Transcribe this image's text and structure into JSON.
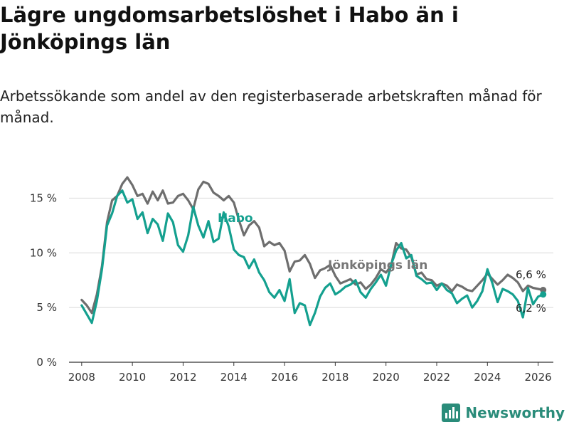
{
  "title": "Lägre ungdomsarbetslöshet i Habo än i Jönköpings län",
  "subtitle": "Arbetssökande som andel av den registerbaserade arbetskraften månad för månad.",
  "brand": "Newsworthy",
  "colors": {
    "habo": "#14a08f",
    "jkp": "#6e6e6e",
    "grid": "#d9d9d9",
    "axis": "#333333",
    "brand": "#2a8c7a"
  },
  "chart_data": {
    "type": "line",
    "title": "Lägre ungdomsarbetslöshet i Habo än i Jönköpings län",
    "xlabel": "",
    "ylabel": "",
    "xlim": [
      2007.5,
      2026.6
    ],
    "ylim": [
      0,
      17.5
    ],
    "yticks": [
      0,
      5,
      10,
      15
    ],
    "ytick_labels": [
      "0 %",
      "5 %",
      "10 %",
      "15 %"
    ],
    "xticks": [
      2008,
      2010,
      2012,
      2014,
      2016,
      2018,
      2020,
      2022,
      2024,
      2026
    ],
    "xtick_labels": [
      "2008",
      "2010",
      "2012",
      "2014",
      "2016",
      "2018",
      "2020",
      "2022",
      "2024",
      "2026"
    ],
    "grid": true,
    "series": [
      {
        "name": "Jönköpings län",
        "label": "Jönköpings län",
        "end_label": "6,6 %",
        "x": [
          2008.0,
          2008.2,
          2008.4,
          2008.6,
          2008.8,
          2009.0,
          2009.2,
          2009.4,
          2009.6,
          2009.8,
          2010.0,
          2010.2,
          2010.4,
          2010.6,
          2010.8,
          2011.0,
          2011.2,
          2011.4,
          2011.6,
          2011.8,
          2012.0,
          2012.2,
          2012.4,
          2012.6,
          2012.8,
          2013.0,
          2013.2,
          2013.4,
          2013.6,
          2013.8,
          2014.0,
          2014.2,
          2014.4,
          2014.6,
          2014.8,
          2015.0,
          2015.2,
          2015.4,
          2015.6,
          2015.8,
          2016.0,
          2016.2,
          2016.4,
          2016.6,
          2016.8,
          2017.0,
          2017.2,
          2017.4,
          2017.6,
          2017.8,
          2018.0,
          2018.2,
          2018.4,
          2018.6,
          2018.8,
          2019.0,
          2019.2,
          2019.4,
          2019.6,
          2019.8,
          2020.0,
          2020.2,
          2020.4,
          2020.6,
          2020.8,
          2021.0,
          2021.2,
          2021.4,
          2021.6,
          2021.8,
          2022.0,
          2022.2,
          2022.4,
          2022.6,
          2022.8,
          2023.0,
          2023.2,
          2023.4,
          2023.6,
          2023.8,
          2024.0,
          2024.2,
          2024.4,
          2024.6,
          2024.8,
          2025.0,
          2025.2,
          2025.4,
          2025.6,
          2025.8,
          2026.0,
          2026.2
        ],
        "values": [
          5.7,
          5.2,
          4.5,
          6.2,
          8.8,
          12.8,
          14.8,
          15.2,
          16.3,
          16.9,
          16.2,
          15.2,
          15.4,
          14.5,
          15.6,
          14.8,
          15.7,
          14.5,
          14.6,
          15.2,
          15.4,
          14.8,
          14.0,
          15.8,
          16.5,
          16.3,
          15.5,
          15.2,
          14.8,
          15.2,
          14.6,
          13.0,
          11.6,
          12.5,
          12.9,
          12.3,
          10.6,
          11.0,
          10.7,
          10.9,
          10.2,
          8.3,
          9.2,
          9.3,
          9.8,
          9.0,
          7.7,
          8.4,
          8.6,
          8.9,
          7.9,
          7.2,
          7.4,
          7.6,
          7.1,
          7.3,
          6.7,
          7.1,
          7.7,
          8.5,
          8.2,
          8.8,
          10.9,
          10.4,
          10.3,
          9.6,
          8.0,
          8.2,
          7.6,
          7.5,
          7.0,
          7.2,
          7.0,
          6.5,
          7.1,
          6.9,
          6.6,
          6.5,
          7.0,
          7.5,
          8.1,
          7.6,
          7.1,
          7.5,
          8.0,
          7.7,
          7.3,
          6.5,
          7.0,
          6.8,
          6.7,
          6.6
        ]
      },
      {
        "name": "Habo",
        "label": "Habo",
        "end_label": "6,2 %",
        "x": [
          2008.0,
          2008.2,
          2008.4,
          2008.6,
          2008.8,
          2009.0,
          2009.2,
          2009.4,
          2009.6,
          2009.8,
          2010.0,
          2010.2,
          2010.4,
          2010.6,
          2010.8,
          2011.0,
          2011.2,
          2011.4,
          2011.6,
          2011.8,
          2012.0,
          2012.2,
          2012.4,
          2012.6,
          2012.8,
          2013.0,
          2013.2,
          2013.4,
          2013.6,
          2013.8,
          2014.0,
          2014.2,
          2014.4,
          2014.6,
          2014.8,
          2015.0,
          2015.2,
          2015.4,
          2015.6,
          2015.8,
          2016.0,
          2016.2,
          2016.4,
          2016.6,
          2016.8,
          2017.0,
          2017.2,
          2017.4,
          2017.6,
          2017.8,
          2018.0,
          2018.2,
          2018.4,
          2018.6,
          2018.8,
          2019.0,
          2019.2,
          2019.4,
          2019.6,
          2019.8,
          2020.0,
          2020.2,
          2020.4,
          2020.6,
          2020.8,
          2021.0,
          2021.2,
          2021.4,
          2021.6,
          2021.8,
          2022.0,
          2022.2,
          2022.4,
          2022.6,
          2022.8,
          2023.0,
          2023.2,
          2023.4,
          2023.6,
          2023.8,
          2024.0,
          2024.2,
          2024.4,
          2024.6,
          2024.8,
          2025.0,
          2025.2,
          2025.4,
          2025.6,
          2025.8,
          2026.0,
          2026.2
        ],
        "values": [
          5.2,
          4.4,
          3.6,
          5.6,
          8.5,
          12.5,
          13.6,
          15.2,
          15.7,
          14.6,
          14.9,
          13.1,
          13.7,
          11.8,
          13.1,
          12.6,
          11.1,
          13.6,
          12.8,
          10.7,
          10.1,
          11.6,
          14.2,
          12.5,
          11.4,
          12.9,
          11.0,
          11.3,
          13.7,
          12.4,
          10.3,
          9.8,
          9.6,
          8.6,
          9.4,
          8.2,
          7.5,
          6.4,
          5.9,
          6.6,
          5.6,
          7.6,
          4.5,
          5.4,
          5.2,
          3.4,
          4.5,
          6.0,
          6.8,
          7.2,
          6.2,
          6.5,
          6.9,
          7.1,
          7.5,
          6.4,
          5.9,
          6.7,
          7.3,
          8.0,
          7.0,
          8.9,
          10.2,
          10.9,
          9.5,
          9.8,
          7.9,
          7.6,
          7.2,
          7.3,
          6.6,
          7.2,
          6.6,
          6.3,
          5.4,
          5.8,
          6.1,
          5.0,
          5.6,
          6.5,
          8.5,
          7.2,
          5.5,
          6.7,
          6.5,
          6.2,
          5.6,
          4.1,
          6.8,
          5.3,
          6.0,
          6.2
        ]
      }
    ]
  }
}
